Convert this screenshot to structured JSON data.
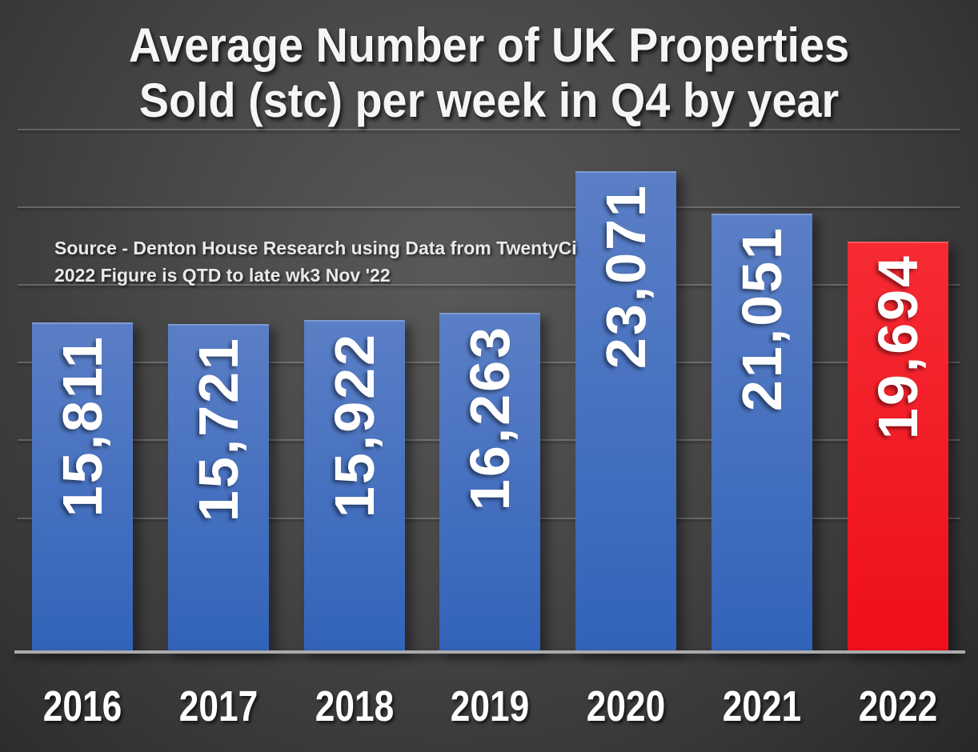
{
  "title": {
    "line1": "Average Number of UK Properties",
    "line2": "Sold (stc) per week in Q4 by year"
  },
  "source": {
    "line1": "Source - Denton House Research using Data from TwentyCi",
    "line2": "2022 Figure is QTD to late wk3 Nov '22"
  },
  "chart_data": {
    "type": "bar",
    "title": "Average Number of UK Properties Sold (stc) per week in Q4 by year",
    "categories": [
      "2016",
      "2017",
      "2018",
      "2019",
      "2020",
      "2021",
      "2022"
    ],
    "values": [
      15811,
      15721,
      15922,
      16263,
      23071,
      21051,
      19694
    ],
    "value_labels": [
      "15,811",
      "15,721",
      "15,922",
      "16,263",
      "23,071",
      "21,051",
      "19,694"
    ],
    "xlabel": "",
    "ylabel": "",
    "ylim": [
      0,
      25000
    ],
    "grid": true,
    "legend": false,
    "highlight_category": "2022",
    "annotation": "Source - Denton House Research using Data from TwentyCi 2022 Figure is QTD to late wk3 Nov '22"
  },
  "colors": {
    "bar_blue_top": "#5b7fc6",
    "bar_blue_bottom": "#3263b9",
    "bar_red_top": "#f62b33",
    "bar_red_bottom": "#ee0f1b",
    "label_text": "#ffffff",
    "axis_line": "#a9aaac",
    "background_center": "#595959",
    "background_edge": "#262626"
  }
}
